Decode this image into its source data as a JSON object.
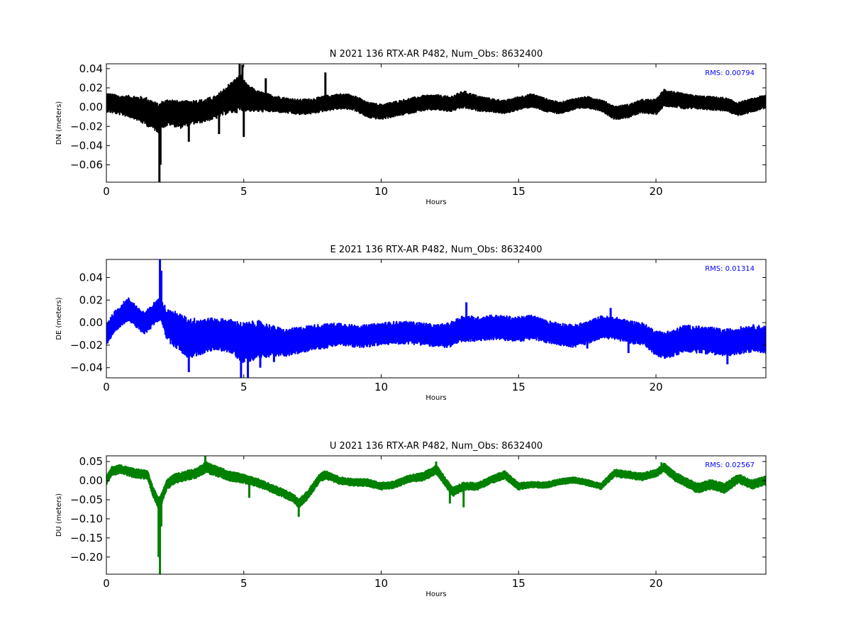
{
  "chart_data": [
    {
      "type": "line",
      "title": "N 2021 136 RTX-AR  P482, Num_Obs: 8632400",
      "xlabel": "Hours",
      "ylabel": "DN (meters)",
      "xlim": [
        0,
        24
      ],
      "ylim": [
        -0.078,
        0.045
      ],
      "xticks": [
        0,
        5,
        10,
        15,
        20
      ],
      "yticks": [
        0.04,
        0.02,
        0.0,
        -0.02,
        -0.04,
        -0.06
      ],
      "ytick_labels": [
        "0.04",
        "0.02",
        "0.00",
        "−0.02",
        "−0.04",
        "−0.06"
      ],
      "grid": false,
      "annotation": "RMS:  0.00794",
      "annotation_color": "#0000ff",
      "series": [
        {
          "color": "#000000",
          "x": [
            0,
            0.5,
            1,
            1.5,
            1.8,
            1.9,
            2.0,
            2.3,
            2.7,
            3.0,
            3.5,
            4.0,
            4.4,
            4.7,
            4.9,
            5.1,
            5.5,
            6.0,
            6.5,
            7.0,
            7.5,
            8.0,
            8.5,
            9.0,
            9.5,
            10.0,
            10.5,
            11.0,
            11.5,
            12.0,
            12.5,
            13.0,
            13.5,
            14.0,
            14.5,
            15.0,
            15.5,
            16.0,
            16.5,
            17.0,
            17.5,
            18.0,
            18.5,
            19.0,
            19.5,
            20.0,
            20.3,
            20.7,
            21.0,
            21.5,
            22.0,
            22.5,
            23.0,
            23.5,
            24.0
          ],
          "center": [
            0.005,
            0.002,
            0.0,
            -0.005,
            -0.01,
            -0.012,
            -0.008,
            -0.005,
            -0.008,
            -0.006,
            -0.004,
            0.0,
            0.008,
            0.012,
            0.015,
            0.01,
            0.006,
            0.004,
            0.002,
            0.0,
            0.001,
            0.004,
            0.006,
            0.005,
            -0.003,
            -0.005,
            -0.002,
            0.001,
            0.004,
            0.005,
            0.003,
            0.008,
            0.004,
            0.002,
            0.0,
            0.004,
            0.007,
            0.002,
            -0.001,
            0.003,
            0.005,
            0.002,
            -0.006,
            -0.004,
            0.001,
            0.0,
            0.01,
            0.008,
            0.006,
            0.005,
            0.004,
            0.003,
            -0.002,
            0.002,
            0.006
          ],
          "halfwidth": [
            0.01,
            0.01,
            0.012,
            0.015,
            0.015,
            0.015,
            0.014,
            0.014,
            0.014,
            0.013,
            0.012,
            0.012,
            0.015,
            0.018,
            0.02,
            0.014,
            0.011,
            0.009,
            0.008,
            0.008,
            0.008,
            0.008,
            0.008,
            0.008,
            0.008,
            0.008,
            0.008,
            0.008,
            0.008,
            0.008,
            0.008,
            0.009,
            0.008,
            0.007,
            0.007,
            0.007,
            0.007,
            0.007,
            0.006,
            0.006,
            0.006,
            0.006,
            0.007,
            0.007,
            0.007,
            0.008,
            0.009,
            0.008,
            0.008,
            0.007,
            0.007,
            0.007,
            0.007,
            0.007,
            0.007
          ],
          "spikes": [
            [
              1.93,
              -0.078
            ],
            [
              1.97,
              -0.06
            ],
            [
              4.85,
              0.045
            ],
            [
              4.95,
              0.044
            ],
            [
              3.0,
              -0.036
            ],
            [
              5.0,
              -0.031
            ],
            [
              4.1,
              -0.028
            ],
            [
              7.97,
              0.036
            ],
            [
              5.8,
              0.03
            ]
          ]
        }
      ]
    },
    {
      "type": "line",
      "title": "E 2021 136 RTX-AR  P482, Num_Obs: 8632400",
      "xlabel": "Hours",
      "ylabel": "DE (meters)",
      "xlim": [
        0,
        24
      ],
      "ylim": [
        -0.049,
        0.056
      ],
      "xticks": [
        0,
        5,
        10,
        15,
        20
      ],
      "yticks": [
        0.04,
        0.02,
        0.0,
        -0.02,
        -0.04
      ],
      "ytick_labels": [
        "0.04",
        "0.02",
        "0.00",
        "−0.02",
        "−0.04"
      ],
      "grid": false,
      "annotation": "RMS:  0.01314",
      "annotation_color": "#0000ff",
      "series": [
        {
          "color": "#0000ff",
          "x": [
            0,
            0.3,
            0.6,
            0.8,
            1.0,
            1.2,
            1.4,
            1.6,
            1.8,
            2.0,
            2.2,
            2.5,
            3.0,
            3.5,
            4.0,
            4.5,
            5.0,
            5.5,
            6.0,
            6.5,
            7.0,
            7.5,
            8.0,
            8.5,
            9.0,
            9.5,
            10.0,
            10.5,
            11.0,
            11.5,
            12.0,
            12.5,
            13.0,
            13.5,
            14.0,
            14.5,
            15.0,
            15.5,
            16.0,
            16.5,
            17.0,
            17.5,
            18.0,
            18.5,
            19.0,
            19.5,
            20.0,
            20.3,
            20.7,
            21.0,
            21.5,
            22.0,
            22.5,
            23.0,
            23.5,
            24.0
          ],
          "center": [
            -0.01,
            0.0,
            0.008,
            0.012,
            0.008,
            0.002,
            0.0,
            0.004,
            0.01,
            0.012,
            -0.002,
            -0.006,
            -0.014,
            -0.012,
            -0.01,
            -0.012,
            -0.018,
            -0.015,
            -0.016,
            -0.018,
            -0.016,
            -0.013,
            -0.012,
            -0.01,
            -0.012,
            -0.012,
            -0.01,
            -0.009,
            -0.009,
            -0.01,
            -0.012,
            -0.011,
            -0.005,
            -0.006,
            -0.004,
            -0.005,
            -0.006,
            -0.004,
            -0.008,
            -0.01,
            -0.012,
            -0.009,
            -0.004,
            -0.005,
            -0.008,
            -0.01,
            -0.018,
            -0.02,
            -0.018,
            -0.014,
            -0.015,
            -0.016,
            -0.018,
            -0.016,
            -0.014,
            -0.015
          ],
          "halfwidth": [
            0.01,
            0.01,
            0.01,
            0.01,
            0.01,
            0.01,
            0.01,
            0.01,
            0.01,
            0.01,
            0.014,
            0.016,
            0.018,
            0.016,
            0.014,
            0.015,
            0.018,
            0.017,
            0.014,
            0.012,
            0.012,
            0.011,
            0.011,
            0.01,
            0.01,
            0.01,
            0.01,
            0.01,
            0.01,
            0.01,
            0.01,
            0.011,
            0.012,
            0.011,
            0.011,
            0.011,
            0.011,
            0.011,
            0.01,
            0.01,
            0.01,
            0.01,
            0.01,
            0.01,
            0.01,
            0.01,
            0.011,
            0.012,
            0.012,
            0.012,
            0.012,
            0.012,
            0.012,
            0.012,
            0.012,
            0.012
          ],
          "spikes": [
            [
              1.95,
              0.056
            ],
            [
              2.0,
              0.046
            ],
            [
              4.9,
              -0.049
            ],
            [
              5.15,
              -0.049
            ],
            [
              3.0,
              -0.044
            ],
            [
              5.6,
              -0.04
            ],
            [
              13.1,
              0.018
            ],
            [
              18.35,
              0.013
            ],
            [
              22.6,
              -0.037
            ],
            [
              19.0,
              -0.027
            ],
            [
              17.5,
              -0.023
            ],
            [
              6.1,
              -0.035
            ]
          ]
        }
      ]
    },
    {
      "type": "line",
      "title": "U 2021 136 RTX-AR  P482, Num_Obs: 8632400",
      "xlabel": "Hours",
      "ylabel": "DU (meters)",
      "xlim": [
        0,
        24
      ],
      "ylim": [
        -0.245,
        0.065
      ],
      "xticks": [
        0,
        5,
        10,
        15,
        20
      ],
      "yticks": [
        0.05,
        0.0,
        -0.05,
        -0.1,
        -0.15,
        -0.2
      ],
      "ytick_labels": [
        "0.05",
        "0.00",
        "−0.05",
        "−0.10",
        "−0.15",
        "−0.20"
      ],
      "grid": false,
      "annotation": "RMS:  0.02567",
      "annotation_color": "#0000ff",
      "series": [
        {
          "color": "#008000",
          "x": [
            0,
            0.2,
            0.5,
            1.0,
            1.5,
            1.7,
            1.8,
            1.9,
            2.0,
            2.2,
            2.5,
            3.0,
            3.3,
            3.6,
            4.0,
            4.5,
            5.0,
            5.5,
            6.0,
            6.5,
            6.8,
            7.0,
            7.3,
            7.8,
            8.0,
            8.5,
            9.0,
            9.5,
            10.0,
            10.5,
            11.0,
            11.5,
            11.8,
            12.0,
            12.3,
            12.6,
            13.0,
            13.5,
            14.0,
            14.5,
            15.0,
            15.5,
            16.0,
            16.5,
            17.0,
            17.5,
            18.0,
            18.5,
            19.0,
            19.5,
            20.0,
            20.3,
            20.7,
            21.0,
            21.5,
            22.0,
            22.5,
            23.0,
            23.5,
            24.0
          ],
          "center": [
            0.0,
            0.025,
            0.03,
            0.02,
            0.015,
            -0.03,
            -0.045,
            -0.06,
            -0.05,
            -0.01,
            0.005,
            0.015,
            0.02,
            0.035,
            0.025,
            0.012,
            0.005,
            -0.005,
            -0.02,
            -0.035,
            -0.045,
            -0.06,
            -0.04,
            0.01,
            0.015,
            0.0,
            -0.005,
            -0.005,
            -0.015,
            -0.01,
            0.005,
            0.01,
            0.02,
            0.03,
            0.0,
            -0.03,
            -0.015,
            -0.015,
            0.002,
            0.015,
            -0.015,
            -0.01,
            -0.012,
            -0.003,
            0.002,
            -0.005,
            -0.015,
            0.02,
            0.015,
            0.01,
            0.02,
            0.035,
            0.01,
            0.0,
            -0.02,
            -0.01,
            -0.02,
            0.005,
            -0.01,
            0.0
          ],
          "halfwidth": [
            0.012,
            0.012,
            0.012,
            0.012,
            0.012,
            0.014,
            0.015,
            0.015,
            0.015,
            0.014,
            0.013,
            0.013,
            0.013,
            0.015,
            0.014,
            0.013,
            0.012,
            0.011,
            0.011,
            0.011,
            0.011,
            0.012,
            0.012,
            0.012,
            0.012,
            0.01,
            0.01,
            0.01,
            0.01,
            0.01,
            0.01,
            0.011,
            0.012,
            0.013,
            0.012,
            0.012,
            0.011,
            0.01,
            0.01,
            0.011,
            0.01,
            0.008,
            0.008,
            0.008,
            0.008,
            0.008,
            0.008,
            0.01,
            0.01,
            0.01,
            0.01,
            0.012,
            0.012,
            0.012,
            0.013,
            0.013,
            0.013,
            0.012,
            0.012,
            0.012
          ],
          "spikes": [
            [
              1.95,
              -0.245
            ],
            [
              1.9,
              -0.2
            ],
            [
              2.0,
              -0.12
            ],
            [
              3.6,
              0.065
            ],
            [
              7.0,
              -0.095
            ],
            [
              12.0,
              0.05
            ],
            [
              20.2,
              0.048
            ],
            [
              5.2,
              -0.045
            ],
            [
              12.5,
              -0.06
            ],
            [
              13.0,
              -0.07
            ]
          ]
        }
      ]
    }
  ]
}
